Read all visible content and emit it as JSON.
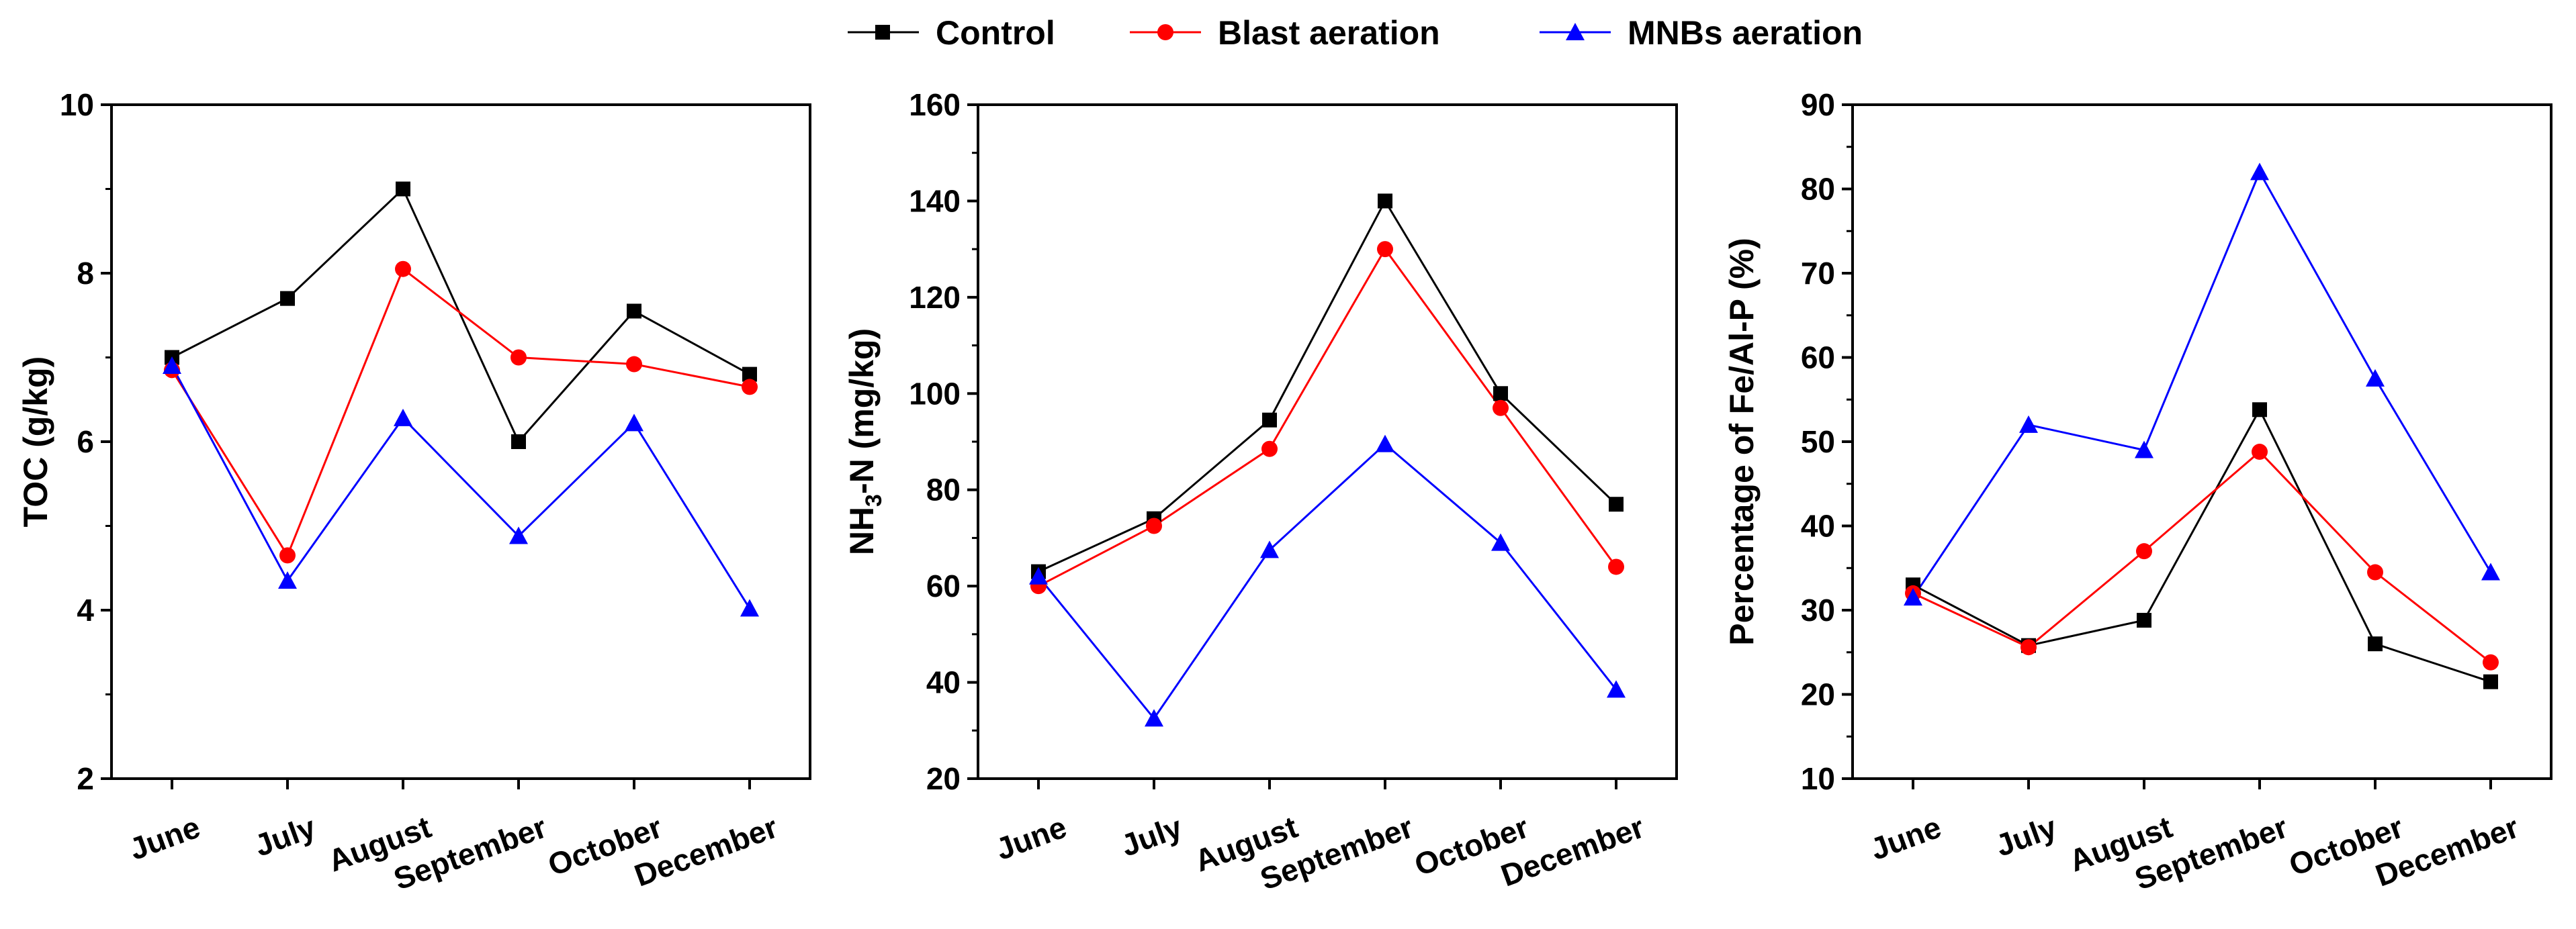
{
  "legend": {
    "control": "Control",
    "blast": "Blast aeration",
    "mnbs": "MNBs aeration"
  },
  "colors": {
    "control": "#000000",
    "blast": "#ff0000",
    "mnbs": "#0000ff"
  },
  "panel_b_ylabel_parts": {
    "main": "NH",
    "sub": "3",
    "rest": "-N (mg/kg)"
  },
  "chart_data": [
    {
      "type": "line",
      "categories": [
        "June",
        "July",
        "August",
        "September",
        "October",
        "December"
      ],
      "ylabel": "TOC (g/kg)",
      "ylim": [
        2,
        10
      ],
      "yticks": [
        2,
        4,
        6,
        8,
        10
      ],
      "series": [
        {
          "name": "Control",
          "marker": "square",
          "values": [
            7.0,
            7.7,
            9.0,
            6.0,
            7.55,
            6.8
          ]
        },
        {
          "name": "Blast aeration",
          "marker": "circle",
          "values": [
            6.85,
            4.65,
            8.05,
            7.0,
            6.92,
            6.65
          ]
        },
        {
          "name": "MNBs aeration",
          "marker": "triangle",
          "values": [
            6.9,
            4.35,
            6.28,
            4.88,
            6.22,
            4.02
          ]
        }
      ]
    },
    {
      "type": "line",
      "categories": [
        "June",
        "July",
        "August",
        "September",
        "October",
        "December"
      ],
      "ylabel": "NH3-N (mg/kg)",
      "ylim": [
        20,
        160
      ],
      "yticks": [
        20,
        40,
        60,
        80,
        100,
        120,
        140,
        160
      ],
      "series": [
        {
          "name": "Control",
          "marker": "square",
          "values": [
            63,
            74,
            94.5,
            140,
            100,
            77
          ]
        },
        {
          "name": "Blast aeration",
          "marker": "circle",
          "values": [
            60,
            72.5,
            88.5,
            130,
            97,
            64
          ]
        },
        {
          "name": "MNBs aeration",
          "marker": "triangle",
          "values": [
            62,
            32.5,
            67.5,
            89.5,
            69,
            38.5
          ]
        }
      ]
    },
    {
      "type": "line",
      "categories": [
        "June",
        "July",
        "August",
        "September",
        "October",
        "December"
      ],
      "ylabel": "Percentage of Fe/Al-P (%)",
      "ylim": [
        10,
        90
      ],
      "yticks": [
        10,
        20,
        30,
        40,
        50,
        60,
        70,
        80,
        90
      ],
      "series": [
        {
          "name": "Control",
          "marker": "square",
          "values": [
            33,
            25.8,
            28.8,
            53.8,
            26,
            21.5
          ]
        },
        {
          "name": "Blast aeration",
          "marker": "circle",
          "values": [
            32,
            25.6,
            37,
            48.8,
            34.5,
            23.8
          ]
        },
        {
          "name": "MNBs aeration",
          "marker": "triangle",
          "values": [
            31.5,
            52,
            49,
            82,
            57.5,
            34.5
          ]
        }
      ]
    }
  ]
}
